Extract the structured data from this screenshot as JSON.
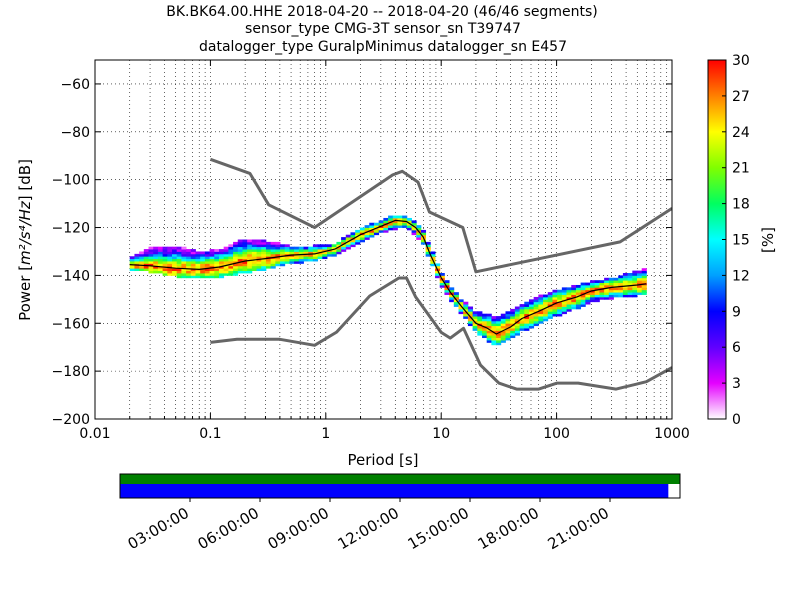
{
  "title": {
    "line1": "BK.BK64.00.HHE   2018-04-20 -- 2018-04-20  (46/46 segments)",
    "line2": "sensor_type CMG-3T sensor_sn T39747",
    "line3": "datalogger_type GuralpMinimus datalogger_sn E457"
  },
  "colors": {
    "model_lines": "#666666",
    "mode_line": "#000000",
    "bar_green": "#008000",
    "bar_blue": "#0000ff"
  },
  "chart_data": [
    {
      "type": "heatmap",
      "subtype": "probabilistic power spectral density",
      "xlabel": "Period [s]",
      "ylabel_prefix": "Power [",
      "ylabel_unit": "m²/s⁴/Hz",
      "ylabel_suffix": "] [dB]",
      "xscale": "log",
      "xlim": [
        0.01,
        1000
      ],
      "ylim": [
        -200,
        -50
      ],
      "x_ticks": [
        0.01,
        0.1,
        1,
        10,
        100,
        1000
      ],
      "x_tick_labels": [
        "0.01",
        "0.1",
        "1",
        "10",
        "100",
        "1000"
      ],
      "y_ticks": [
        -200,
        -180,
        -160,
        -140,
        -120,
        -100,
        -80,
        -60
      ],
      "y_tick_labels": [
        "−200",
        "−180",
        "−160",
        "−140",
        "−120",
        "−100",
        "−80",
        "−60"
      ],
      "grid": "dotted",
      "colorbar": {
        "label": "[%]",
        "range": [
          0,
          30
        ],
        "ticks": [
          0,
          3,
          6,
          9,
          12,
          15,
          18,
          21,
          24,
          27,
          30
        ],
        "colormap": "pqlx"
      },
      "high_noise_model": {
        "x": [
          0.1,
          0.22,
          0.32,
          0.8,
          3.8,
          4.6,
          6.3,
          7.9,
          15.4,
          20,
          354.8,
          1000
        ],
        "y": [
          -91.5,
          -97.4,
          -110.5,
          -120,
          -98,
          -96.5,
          -101,
          -113.5,
          -120,
          -138.5,
          -126,
          -112
        ]
      },
      "low_noise_model": {
        "x": [
          0.1,
          0.17,
          0.4,
          0.8,
          1.24,
          2.4,
          4.3,
          5,
          6,
          10,
          12,
          15.6,
          21.9,
          31.6,
          45,
          70,
          101,
          154,
          328,
          600,
          1000
        ],
        "y": [
          -168,
          -166.7,
          -166.7,
          -169.2,
          -163.7,
          -148.6,
          -141.1,
          -141.1,
          -149,
          -163.8,
          -166.2,
          -162.1,
          -177.5,
          -185,
          -187.5,
          -187.5,
          -185,
          -185,
          -187.5,
          -184.4,
          -178.5
        ]
      },
      "mode": {
        "x": [
          0.02,
          0.03,
          0.05,
          0.08,
          0.12,
          0.2,
          0.3,
          0.5,
          0.8,
          1.2,
          2,
          3,
          4,
          5,
          6,
          7,
          8,
          10,
          12,
          15,
          20,
          25,
          30,
          40,
          50,
          70,
          100,
          150,
          200,
          300,
          500,
          600
        ],
        "y": [
          -135.5,
          -136,
          -137,
          -137.5,
          -136.5,
          -134,
          -133,
          -131.5,
          -131,
          -129,
          -123,
          -119.5,
          -117,
          -117.5,
          -120,
          -124,
          -131,
          -141,
          -147,
          -153,
          -160,
          -162,
          -164.5,
          -161.5,
          -158,
          -155,
          -151.5,
          -149,
          -146.5,
          -145,
          -144,
          -143.5
        ]
      },
      "spread": {
        "x": [
          0.02,
          0.03,
          0.05,
          0.08,
          0.12,
          0.2,
          0.3,
          0.5,
          0.8,
          1.2,
          2,
          3,
          4,
          5,
          6,
          7,
          8,
          10,
          12,
          15,
          20,
          25,
          30,
          40,
          50,
          70,
          100,
          150,
          200,
          300,
          500,
          600
        ],
        "lo": [
          -138,
          -138,
          -140,
          -141,
          -140.5,
          -138.5,
          -137,
          -134.5,
          -133.5,
          -131,
          -126,
          -122,
          -120,
          -120,
          -122.5,
          -126.5,
          -133.5,
          -143.5,
          -149.5,
          -155.5,
          -163.5,
          -166.5,
          -169,
          -166,
          -163,
          -159.5,
          -156.5,
          -153.5,
          -150.5,
          -149,
          -148,
          -147.5
        ],
        "hi": [
          -133.5,
          -128,
          -128,
          -130.5,
          -129.5,
          -125,
          -126,
          -128,
          -128,
          -127,
          -120.5,
          -117.5,
          -115,
          -115.5,
          -118,
          -121.5,
          -128.5,
          -138.5,
          -144.5,
          -150.5,
          -155.5,
          -156.5,
          -157.5,
          -155,
          -152.5,
          -149,
          -146.5,
          -144.5,
          -143,
          -141.5,
          -138.5,
          -137.5
        ]
      }
    },
    {
      "type": "timeline",
      "time_labels": [
        "03:00:00",
        "06:00:00",
        "09:00:00",
        "12:00:00",
        "15:00:00",
        "18:00:00",
        "21:00:00"
      ],
      "time_hours": [
        3,
        6,
        9,
        12,
        15,
        18,
        21
      ],
      "range_hours": [
        0,
        24
      ],
      "rows": [
        {
          "color": "#008000",
          "start": 0,
          "end": 24
        },
        {
          "color": "#0000ff",
          "start": 0,
          "end": 23.5
        }
      ]
    }
  ]
}
